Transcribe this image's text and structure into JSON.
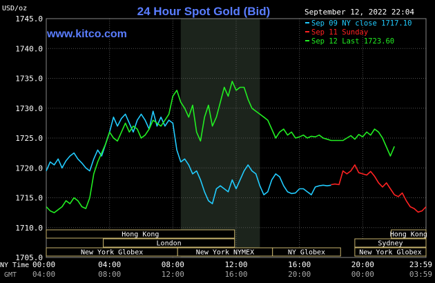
{
  "chart_data": {
    "type": "line",
    "title": "24 Hour Spot Gold (Bid)",
    "site": "www.kitco.com",
    "ylabel": "USD/oz",
    "timestamp": "September 12, 2022 22:04",
    "ylim": [
      1705,
      1745
    ],
    "y_ticks": [
      "1745.0",
      "1740.0",
      "1735.0",
      "1730.0",
      "1725.0",
      "1720.0",
      "1715.0",
      "1710.0",
      "1705.0"
    ],
    "x_row1_label": "NY Time",
    "x_row2_label": "GMT",
    "x_ticks_ny": [
      "00:00",
      "04:00",
      "08:00",
      "12:00",
      "16:00",
      "20:00",
      "23:59"
    ],
    "x_ticks_gmt": [
      "04:00",
      "08:00",
      "12:00",
      "16:00",
      "20:00",
      "00:00",
      "03:59"
    ],
    "highlight_hours": [
      8.5,
      13.5
    ],
    "legend": [
      {
        "label": "Sep 09 NY close 1717.10",
        "color": "#22ccff"
      },
      {
        "label": "Sep 11 Sunday",
        "color": "#ff2222"
      },
      {
        "label": "Sep 12 Last 1723.60",
        "color": "#22ee22"
      }
    ],
    "sessions": {
      "row1": [
        {
          "name": "Hong Kong",
          "start": 0,
          "end": 11.9
        },
        {
          "name": "Hong Kong",
          "start": 21.8,
          "end": 24
        }
      ],
      "row2": [
        {
          "name": "London",
          "start": 3.6,
          "end": 11.9
        },
        {
          "name": "Sydney",
          "start": 19.5,
          "end": 24
        }
      ],
      "row3": [
        {
          "name": "New York Globex",
          "start": 0,
          "end": 8.3
        },
        {
          "name": "New York NYMEX",
          "start": 8.3,
          "end": 14.3
        },
        {
          "name": "NY Globex",
          "start": 14.3,
          "end": 18.6
        },
        {
          "name": "New York Globex",
          "start": 19.5,
          "end": 24
        }
      ]
    },
    "series": [
      {
        "name": "Sep 09 NY close 1717.10",
        "color": "#22ccff",
        "x": [
          0,
          0.25,
          0.5,
          0.75,
          1,
          1.25,
          1.5,
          1.75,
          2,
          2.25,
          2.5,
          2.75,
          3,
          3.25,
          3.5,
          3.75,
          4,
          4.25,
          4.5,
          4.75,
          5,
          5.25,
          5.5,
          5.75,
          6,
          6.25,
          6.5,
          6.75,
          7,
          7.25,
          7.5,
          7.75,
          8,
          8.25,
          8.5,
          8.75,
          9,
          9.25,
          9.5,
          9.75,
          10,
          10.25,
          10.5,
          10.75,
          11,
          11.25,
          11.5,
          11.75,
          12,
          12.25,
          12.5,
          12.75,
          13,
          13.25,
          13.5,
          13.75,
          14,
          14.25,
          14.5,
          14.75,
          15,
          15.25,
          15.5,
          15.75,
          16,
          16.25,
          16.5,
          16.75,
          17,
          17.25,
          17.5,
          17.75,
          18
        ],
        "values": [
          1719.5,
          1721.0,
          1720.5,
          1721.5,
          1720.0,
          1721.2,
          1722.0,
          1722.5,
          1721.5,
          1720.8,
          1720.0,
          1719.5,
          1721.5,
          1723.0,
          1722.0,
          1724.0,
          1726.0,
          1728.5,
          1727.0,
          1728.3,
          1729.0,
          1727.5,
          1726.0,
          1728.0,
          1729.0,
          1728.0,
          1726.5,
          1729.5,
          1727.0,
          1728.5,
          1727.0,
          1728.0,
          1727.5,
          1723.0,
          1721.0,
          1721.5,
          1720.5,
          1719.0,
          1719.5,
          1718.0,
          1716.0,
          1714.5,
          1714.0,
          1716.5,
          1717.0,
          1716.5,
          1716.0,
          1718.0,
          1716.5,
          1718.0,
          1719.5,
          1720.5,
          1719.5,
          1719.0,
          1717.0,
          1715.5,
          1716.0,
          1718.0,
          1719.0,
          1718.5,
          1717.0,
          1716.0,
          1715.7,
          1715.8,
          1716.5,
          1716.5,
          1716.0,
          1715.5,
          1716.8,
          1717.0,
          1717.1,
          1717.0,
          1717.1
        ]
      },
      {
        "name": "Sep 11 Sunday",
        "color": "#ff2222",
        "x": [
          18,
          18.25,
          18.5,
          18.75,
          19,
          19.25,
          19.5,
          19.75,
          20,
          20.25,
          20.5,
          20.75,
          21,
          21.25,
          21.5,
          21.75,
          22,
          22.25,
          22.5,
          22.75,
          23,
          23.25,
          23.5,
          23.75,
          24
        ],
        "values": [
          1717.2,
          1717.3,
          1717.2,
          1719.5,
          1719.0,
          1719.5,
          1720.5,
          1719.2,
          1719.0,
          1718.8,
          1719.4,
          1718.6,
          1717.5,
          1716.8,
          1717.5,
          1716.5,
          1715.5,
          1715.2,
          1715.8,
          1714.5,
          1713.5,
          1713.2,
          1712.6,
          1712.8,
          1713.5
        ]
      },
      {
        "name": "Sep 12 Last 1723.60",
        "color": "#22ee22",
        "x": [
          0,
          0.25,
          0.5,
          0.75,
          1,
          1.25,
          1.5,
          1.75,
          2,
          2.25,
          2.5,
          2.75,
          3,
          3.25,
          3.5,
          3.75,
          4,
          4.25,
          4.5,
          4.75,
          5,
          5.25,
          5.5,
          5.75,
          6,
          6.25,
          6.5,
          6.75,
          7,
          7.25,
          7.5,
          7.75,
          8,
          8.25,
          8.5,
          8.75,
          9,
          9.25,
          9.5,
          9.75,
          10,
          10.25,
          10.5,
          10.75,
          11,
          11.25,
          11.5,
          11.75,
          12,
          12.25,
          12.5,
          12.75,
          13,
          13.25,
          13.5,
          13.75,
          14,
          14.25,
          14.5,
          14.75,
          15,
          15.25,
          15.5,
          15.75,
          16,
          16.25,
          16.5,
          16.75,
          17,
          17.25,
          17.5,
          17.75,
          18,
          18.25,
          18.5,
          18.75,
          19,
          19.25,
          19.5,
          19.75,
          20,
          20.25,
          20.5,
          20.75,
          21,
          21.25,
          21.5,
          21.75,
          22
        ],
        "values": [
          1713.5,
          1712.8,
          1712.5,
          1713.0,
          1713.5,
          1714.5,
          1714.0,
          1715.0,
          1714.5,
          1713.5,
          1713.2,
          1715.0,
          1719.0,
          1721.0,
          1722.5,
          1724.0,
          1726.0,
          1725.0,
          1724.5,
          1726.0,
          1727.5,
          1726.0,
          1727.0,
          1726.5,
          1725.0,
          1725.5,
          1726.5,
          1728.0,
          1727.5,
          1727.0,
          1728.0,
          1729.0,
          1732.0,
          1733.0,
          1731.0,
          1730.0,
          1728.5,
          1730.5,
          1726.0,
          1724.5,
          1728.5,
          1730.5,
          1727.0,
          1728.5,
          1731.0,
          1733.5,
          1732.0,
          1734.5,
          1733.0,
          1733.5,
          1733.5,
          1731.5,
          1730.0,
          1729.5,
          1729.0,
          1728.5,
          1728.0,
          1726.5,
          1725.0,
          1726.0,
          1726.5,
          1725.5,
          1726.0,
          1725.0,
          1725.2,
          1725.5,
          1725.0,
          1725.3,
          1725.2,
          1725.5,
          1725.0,
          1724.8,
          1724.6,
          1724.6,
          1724.6,
          1724.6,
          1725.0,
          1725.4,
          1724.8,
          1725.6,
          1725.2,
          1726.0,
          1725.5,
          1726.5,
          1726.0,
          1725.0,
          1723.5,
          1722.0,
          1723.6
        ]
      }
    ]
  }
}
